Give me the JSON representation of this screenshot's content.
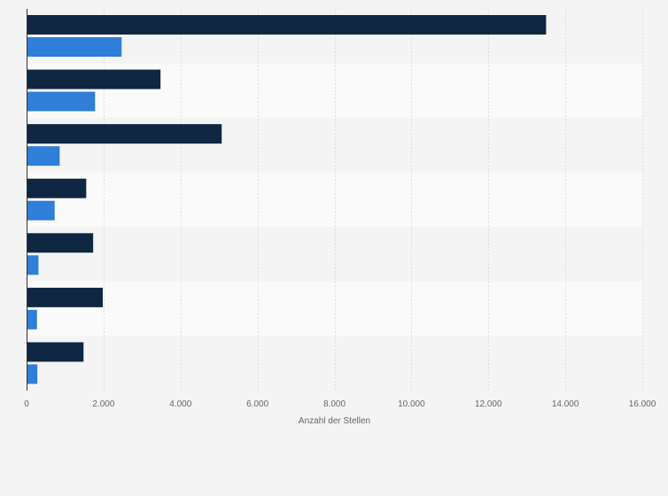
{
  "chart_data": {
    "type": "bar",
    "orientation": "horizontal",
    "categories": [
      "",
      "",
      "",
      "",
      "",
      "",
      ""
    ],
    "series": [
      {
        "values": [
          13500,
          3480,
          5070,
          1550,
          1730,
          1980,
          1480
        ]
      },
      {
        "values": [
          2470,
          1780,
          860,
          730,
          310,
          270,
          280
        ]
      }
    ],
    "xlabel": "Anzahl der Stellen",
    "ylabel": "",
    "xlim": [
      0,
      16000
    ],
    "xticks": [
      0,
      2000,
      4000,
      6000,
      8000,
      10000,
      12000,
      14000,
      16000
    ],
    "xtick_labels": [
      "0",
      "2.000",
      "4.000",
      "6.000",
      "8.000",
      "10.000",
      "12.000",
      "14.000",
      "16.000"
    ],
    "grid": true,
    "legend": "none",
    "colors": {
      "series_1": "#0f2742",
      "series_2": "#2f7ed8",
      "band_dark": "#f4f4f4",
      "band_light": "#fafafa",
      "gridline": "#dddddd",
      "axis": "#333333"
    }
  }
}
